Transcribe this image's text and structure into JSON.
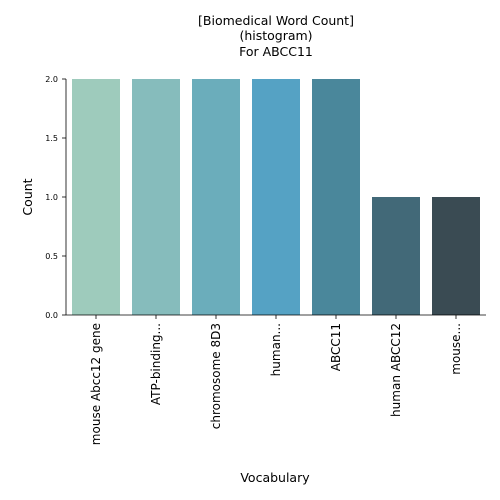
{
  "chart_data": {
    "type": "bar",
    "title": "[Biomedical Word Count]\n(histogram)\nFor ABCC11",
    "xlabel": "Vocabulary",
    "ylabel": "Count",
    "categories": [
      "mouse Abcc12 gene",
      "ATP-binding...",
      "chromosome 8D3",
      "human...",
      "ABCC11",
      "human ABCC12",
      "mouse..."
    ],
    "values": [
      2,
      2,
      2,
      2,
      2,
      1,
      1
    ],
    "colors": [
      "#9ecbbc",
      "#86bcbc",
      "#6badbb",
      "#55a2c4",
      "#4a879b",
      "#426978",
      "#3a4b53"
    ],
    "ylim": [
      0,
      2
    ],
    "yticks": [
      "0.0",
      "0.5",
      "1.0",
      "1.5",
      "2.0"
    ],
    "grid": false
  }
}
